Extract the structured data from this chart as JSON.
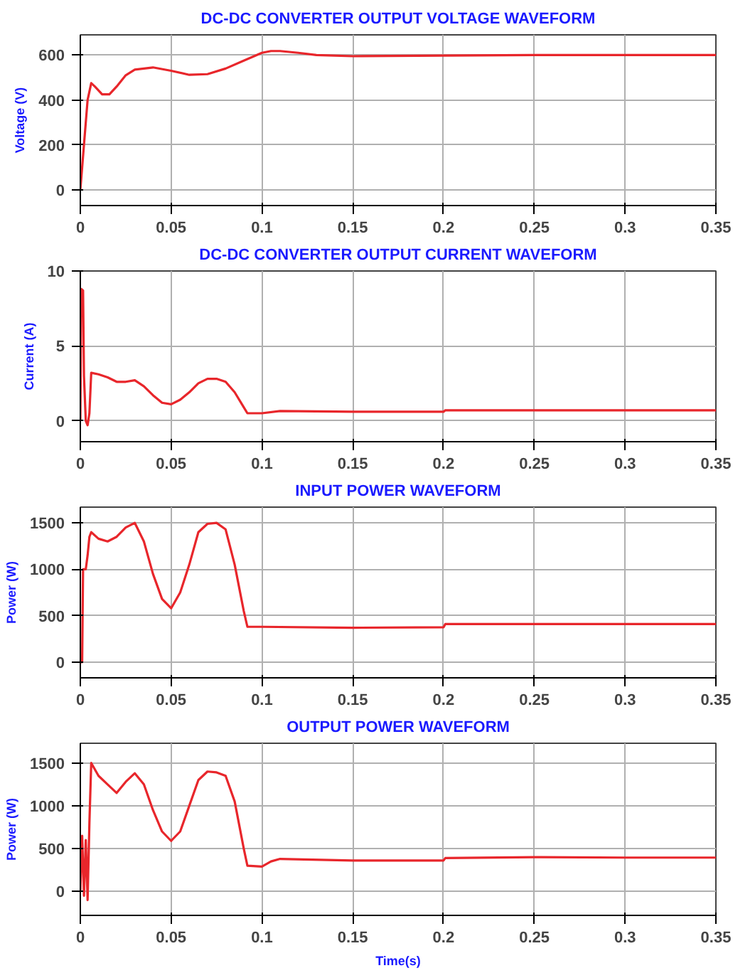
{
  "chart_data": [
    {
      "type": "line",
      "title": "DC-DC CONVERTER OUTPUT VOLTAGE WAVEFORM",
      "ylabel": "Voltage (V)",
      "xlim": [
        0,
        0.35
      ],
      "xticks": [
        0,
        0.05,
        0.1,
        0.15,
        0.2,
        0.25,
        0.3,
        0.35
      ],
      "ylim": [
        -70,
        690
      ],
      "yticks": [
        0,
        200,
        400,
        600
      ],
      "grid": true,
      "marker": "none",
      "line_style": "solid",
      "series": [
        {
          "color": "#e8262b",
          "x": [
            0,
            0.002,
            0.004,
            0.006,
            0.008,
            0.012,
            0.016,
            0.02,
            0.025,
            0.03,
            0.04,
            0.05,
            0.06,
            0.07,
            0.08,
            0.09,
            0.1,
            0.105,
            0.11,
            0.12,
            0.13,
            0.15,
            0.2,
            0.25,
            0.3,
            0.35
          ],
          "values": [
            0,
            200,
            400,
            475,
            460,
            425,
            425,
            460,
            510,
            535,
            545,
            530,
            512,
            515,
            540,
            575,
            610,
            618,
            618,
            610,
            600,
            595,
            598,
            600,
            600,
            600
          ]
        }
      ]
    },
    {
      "type": "line",
      "title": "DC-DC CONVERTER OUTPUT CURRENT WAVEFORM",
      "ylabel": "Current (A)",
      "xlim": [
        0,
        0.35
      ],
      "xticks": [
        0,
        0.05,
        0.1,
        0.15,
        0.2,
        0.25,
        0.3,
        0.35
      ],
      "ylim": [
        -1.4,
        10
      ],
      "yticks": [
        0,
        5,
        10
      ],
      "grid": true,
      "marker": "none",
      "line_style": "solid",
      "series": [
        {
          "color": "#e8262b",
          "x": [
            0,
            0.0005,
            0.0015,
            0.002,
            0.003,
            0.004,
            0.005,
            0.006,
            0.01,
            0.015,
            0.02,
            0.025,
            0.03,
            0.035,
            0.04,
            0.045,
            0.05,
            0.055,
            0.06,
            0.065,
            0.07,
            0.075,
            0.08,
            0.085,
            0.09,
            0.092,
            0.1,
            0.11,
            0.15,
            0.2,
            0.201,
            0.25,
            0.35
          ],
          "values": [
            0,
            8.8,
            8.7,
            3,
            0,
            -0.3,
            0.5,
            3.2,
            3.1,
            2.9,
            2.6,
            2.6,
            2.7,
            2.3,
            1.7,
            1.2,
            1.1,
            1.4,
            1.9,
            2.5,
            2.8,
            2.8,
            2.6,
            1.9,
            0.9,
            0.5,
            0.5,
            0.65,
            0.6,
            0.6,
            0.7,
            0.7,
            0.7
          ]
        }
      ]
    },
    {
      "type": "line",
      "title": "INPUT POWER WAVEFORM",
      "ylabel": "Power (W)",
      "xlim": [
        0,
        0.35
      ],
      "xticks": [
        0,
        0.05,
        0.1,
        0.15,
        0.2,
        0.25,
        0.3,
        0.35
      ],
      "ylim": [
        -170,
        1670
      ],
      "yticks": [
        0,
        500,
        1000,
        1500
      ],
      "grid": true,
      "marker": "none",
      "line_style": "solid",
      "series": [
        {
          "color": "#e8262b",
          "x": [
            0,
            0.001,
            0.0015,
            0.003,
            0.004,
            0.005,
            0.006,
            0.01,
            0.015,
            0.02,
            0.025,
            0.03,
            0.035,
            0.04,
            0.045,
            0.05,
            0.055,
            0.06,
            0.065,
            0.07,
            0.075,
            0.08,
            0.085,
            0.09,
            0.092,
            0.1,
            0.15,
            0.2,
            0.201,
            0.25,
            0.35
          ],
          "values": [
            0,
            0,
            1000,
            1000,
            1150,
            1350,
            1400,
            1330,
            1300,
            1350,
            1450,
            1500,
            1300,
            950,
            680,
            580,
            750,
            1050,
            1400,
            1490,
            1500,
            1430,
            1050,
            550,
            380,
            380,
            370,
            375,
            410,
            410,
            410
          ]
        }
      ]
    },
    {
      "type": "line",
      "title": "OUTPUT POWER WAVEFORM",
      "ylabel": "Power (W)",
      "xlabel": "Time(s)",
      "xlim": [
        0,
        0.35
      ],
      "xticks": [
        0,
        0.05,
        0.1,
        0.15,
        0.2,
        0.25,
        0.3,
        0.35
      ],
      "ylim": [
        -280,
        1730
      ],
      "yticks": [
        0,
        500,
        1000,
        1500
      ],
      "grid": true,
      "marker": "none",
      "line_style": "solid",
      "series": [
        {
          "color": "#e8262b",
          "x": [
            0,
            0.001,
            0.002,
            0.003,
            0.004,
            0.005,
            0.006,
            0.01,
            0.015,
            0.02,
            0.025,
            0.03,
            0.035,
            0.04,
            0.045,
            0.05,
            0.055,
            0.06,
            0.065,
            0.07,
            0.075,
            0.08,
            0.085,
            0.09,
            0.092,
            0.1,
            0.105,
            0.11,
            0.15,
            0.2,
            0.201,
            0.25,
            0.3,
            0.35
          ],
          "values": [
            0,
            650,
            -50,
            600,
            -100,
            800,
            1500,
            1350,
            1250,
            1150,
            1280,
            1380,
            1250,
            950,
            700,
            590,
            700,
            1000,
            1300,
            1400,
            1390,
            1350,
            1050,
            500,
            300,
            290,
            350,
            380,
            360,
            360,
            390,
            400,
            395,
            395
          ]
        }
      ]
    }
  ]
}
